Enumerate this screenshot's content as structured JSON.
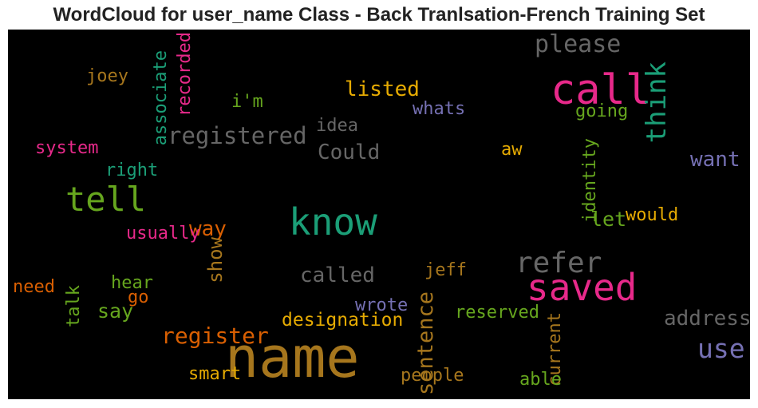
{
  "chart_data": {
    "type": "wordcloud",
    "title": "WordCloud for user_name Class - Back Tranlsation-French Training Set",
    "background": "#000000",
    "words": [
      {
        "text": "name",
        "weight": 1.0,
        "color": "#a6761d",
        "vertical": false
      },
      {
        "text": "call",
        "weight": 0.72,
        "color": "#e7298a",
        "vertical": false
      },
      {
        "text": "saved",
        "weight": 0.62,
        "color": "#e7298a",
        "vertical": false
      },
      {
        "text": "know",
        "weight": 0.62,
        "color": "#1b9e77",
        "vertical": false
      },
      {
        "text": "tell",
        "weight": 0.55,
        "color": "#66a61e",
        "vertical": false
      },
      {
        "text": "refer",
        "weight": 0.45,
        "color": "#666666",
        "vertical": false
      },
      {
        "text": "think",
        "weight": 0.42,
        "color": "#1b9e77",
        "vertical": true
      },
      {
        "text": "use",
        "weight": 0.4,
        "color": "#7570b3",
        "vertical": false
      },
      {
        "text": "please",
        "weight": 0.35,
        "color": "#666666",
        "vertical": false
      },
      {
        "text": "registered",
        "weight": 0.33,
        "color": "#666666",
        "vertical": false
      },
      {
        "text": "register",
        "weight": 0.32,
        "color": "#d95f02",
        "vertical": false
      },
      {
        "text": "sentence",
        "weight": 0.3,
        "color": "#a6761d",
        "vertical": true
      },
      {
        "text": "address",
        "weight": 0.28,
        "color": "#666666",
        "vertical": false
      },
      {
        "text": "way",
        "weight": 0.28,
        "color": "#d95f02",
        "vertical": false
      },
      {
        "text": "listed",
        "weight": 0.27,
        "color": "#e6ab02",
        "vertical": false
      },
      {
        "text": "Could",
        "weight": 0.27,
        "color": "#666666",
        "vertical": false
      },
      {
        "text": "called",
        "weight": 0.27,
        "color": "#666666",
        "vertical": false
      },
      {
        "text": "want",
        "weight": 0.27,
        "color": "#7570b3",
        "vertical": false
      },
      {
        "text": "let",
        "weight": 0.26,
        "color": "#66a61e",
        "vertical": false
      },
      {
        "text": "say",
        "weight": 0.26,
        "color": "#66a61e",
        "vertical": false
      },
      {
        "text": "show",
        "weight": 0.24,
        "color": "#a6761d",
        "vertical": true
      },
      {
        "text": "designation",
        "weight": 0.22,
        "color": "#e6ab02",
        "vertical": false
      },
      {
        "text": "reserved",
        "weight": 0.21,
        "color": "#66a61e",
        "vertical": false
      },
      {
        "text": "identity",
        "weight": 0.21,
        "color": "#66a61e",
        "vertical": true
      },
      {
        "text": "associate",
        "weight": 0.21,
        "color": "#1b9e77",
        "vertical": true
      },
      {
        "text": "recorded",
        "weight": 0.21,
        "color": "#e7298a",
        "vertical": true
      },
      {
        "text": "current",
        "weight": 0.21,
        "color": "#a6761d",
        "vertical": true
      },
      {
        "text": "whats",
        "weight": 0.2,
        "color": "#7570b3",
        "vertical": false
      },
      {
        "text": "going",
        "weight": 0.2,
        "color": "#66a61e",
        "vertical": false
      },
      {
        "text": "wrote",
        "weight": 0.2,
        "color": "#7570b3",
        "vertical": false
      },
      {
        "text": "jeff",
        "weight": 0.2,
        "color": "#a6761d",
        "vertical": false
      },
      {
        "text": "would",
        "weight": 0.2,
        "color": "#e6ab02",
        "vertical": false
      },
      {
        "text": "people",
        "weight": 0.2,
        "color": "#a6761d",
        "vertical": false
      },
      {
        "text": "able",
        "weight": 0.2,
        "color": "#66a61e",
        "vertical": false
      },
      {
        "text": "smart",
        "weight": 0.2,
        "color": "#e6ab02",
        "vertical": false
      },
      {
        "text": "usually",
        "weight": 0.2,
        "color": "#e7298a",
        "vertical": false
      },
      {
        "text": "system",
        "weight": 0.2,
        "color": "#e7298a",
        "vertical": false
      },
      {
        "text": "joey",
        "weight": 0.2,
        "color": "#a6761d",
        "vertical": false
      },
      {
        "text": "i'm",
        "weight": 0.2,
        "color": "#66a61e",
        "vertical": false
      },
      {
        "text": "idea",
        "weight": 0.2,
        "color": "#666666",
        "vertical": false
      },
      {
        "text": "right",
        "weight": 0.2,
        "color": "#1b9e77",
        "vertical": false
      },
      {
        "text": "aw",
        "weight": 0.2,
        "color": "#e6ab02",
        "vertical": false
      },
      {
        "text": "need",
        "weight": 0.2,
        "color": "#d95f02",
        "vertical": false
      },
      {
        "text": "hear",
        "weight": 0.2,
        "color": "#66a61e",
        "vertical": false
      },
      {
        "text": "go",
        "weight": 0.2,
        "color": "#d95f02",
        "vertical": false
      },
      {
        "text": "talk",
        "weight": 0.2,
        "color": "#66a61e",
        "vertical": true
      }
    ]
  }
}
